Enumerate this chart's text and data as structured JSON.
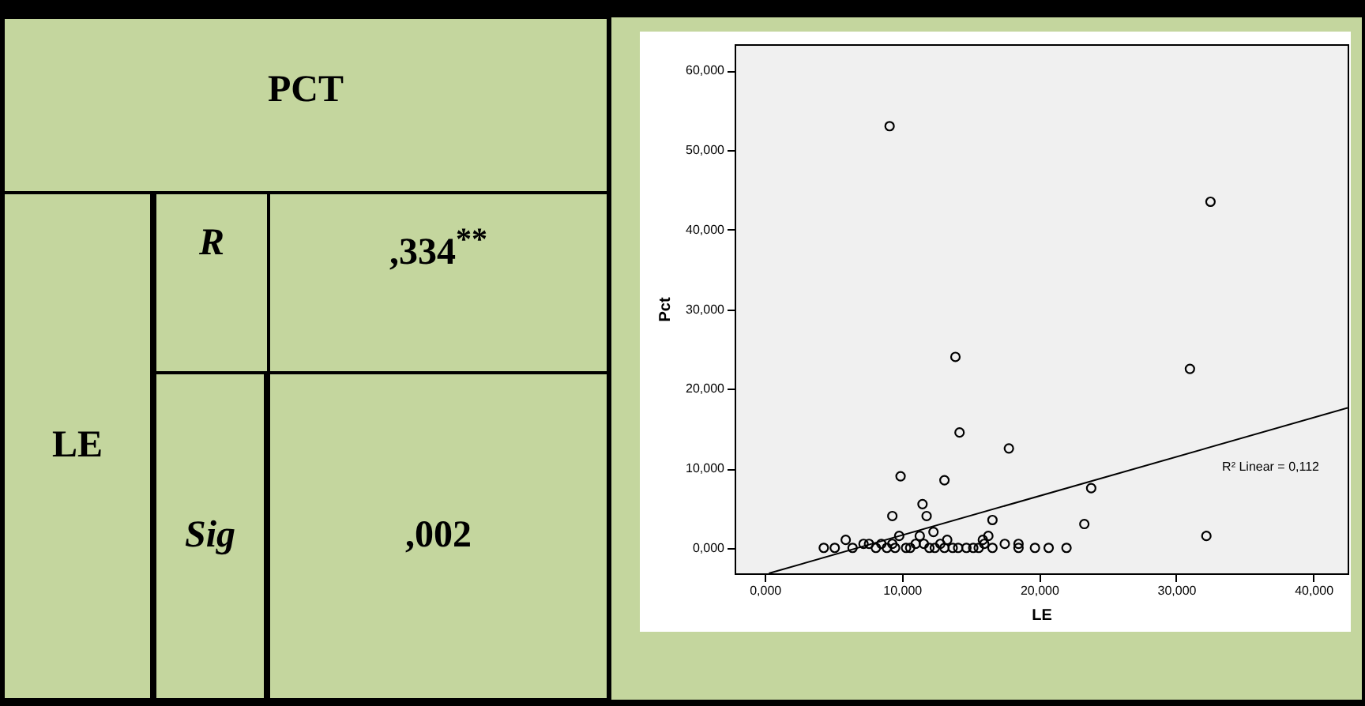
{
  "chart_data": [
    {
      "type": "other",
      "annotations": [
        "PCT",
        "LE",
        "R",
        ",334$^{**}$",
        "Sig",
        ",002"
      ]
    },
    {
      "type": "scatter",
      "xlabel": "LE",
      "ylabel": "Pct",
      "xlim": [
        -2.2,
        42.5
      ],
      "ylim": [
        -3.2,
        63.3
      ],
      "xticks": [
        {
          "value": 0,
          "label": "0,000"
        },
        {
          "value": 10,
          "label": "10,000"
        },
        {
          "value": 20,
          "label": "20,000"
        },
        {
          "value": 30,
          "label": "30,000"
        },
        {
          "value": 40,
          "label": "40,000"
        }
      ],
      "yticks": [
        {
          "value": 0,
          "label": "0,000"
        },
        {
          "value": 10,
          "label": "10,000"
        },
        {
          "value": 20,
          "label": "20,000"
        },
        {
          "value": 30,
          "label": "30,000"
        },
        {
          "value": 40,
          "label": "40,000"
        },
        {
          "value": 50,
          "label": "50,000"
        },
        {
          "value": 60,
          "label": "60,000"
        }
      ],
      "annotations": [
        "R² Linear = 0,112"
      ],
      "series": [
        {
          "type": "scatter",
          "marker": "circle",
          "color": "#000000",
          "x": [
            9.1,
            32.5,
            13.9,
            31.0,
            14.2,
            17.8,
            9.9,
            13.1,
            23.8,
            11.5,
            9.3,
            11.8,
            16.6,
            23.3,
            12.3,
            32.2,
            9.8,
            11.3,
            13.3,
            15.9,
            16.3,
            5.9,
            18.5,
            4.3,
            5.1,
            6.4,
            7.2,
            7.6,
            8.1,
            8.5,
            8.9,
            9.3,
            9.5,
            10.3,
            10.6,
            11.0,
            11.6,
            12.0,
            12.4,
            12.8,
            13.1,
            13.7,
            14.1,
            14.7,
            15.2,
            15.6,
            16.0,
            16.6,
            17.5,
            18.5,
            19.7,
            20.7,
            22.0
          ],
          "values": [
            53,
            43.5,
            24,
            22.5,
            14.5,
            12.5,
            9,
            8.5,
            7.5,
            5.5,
            4,
            4,
            3.5,
            3,
            2,
            1.5,
            1.5,
            1.5,
            1,
            1,
            1.5,
            1,
            0.5,
            0,
            0,
            0,
            0.5,
            0.5,
            0,
            0.5,
            0,
            0.5,
            0,
            0,
            0,
            0.5,
            0.5,
            0,
            0,
            0.5,
            0,
            0,
            0,
            0,
            0,
            0,
            0.5,
            0,
            0.5,
            0,
            0,
            0,
            0
          ]
        },
        {
          "type": "line",
          "marker": "none",
          "color": "#000000",
          "x": [
            0.3,
            42.5
          ],
          "values": [
            -3.2,
            17.6
          ]
        }
      ]
    }
  ]
}
